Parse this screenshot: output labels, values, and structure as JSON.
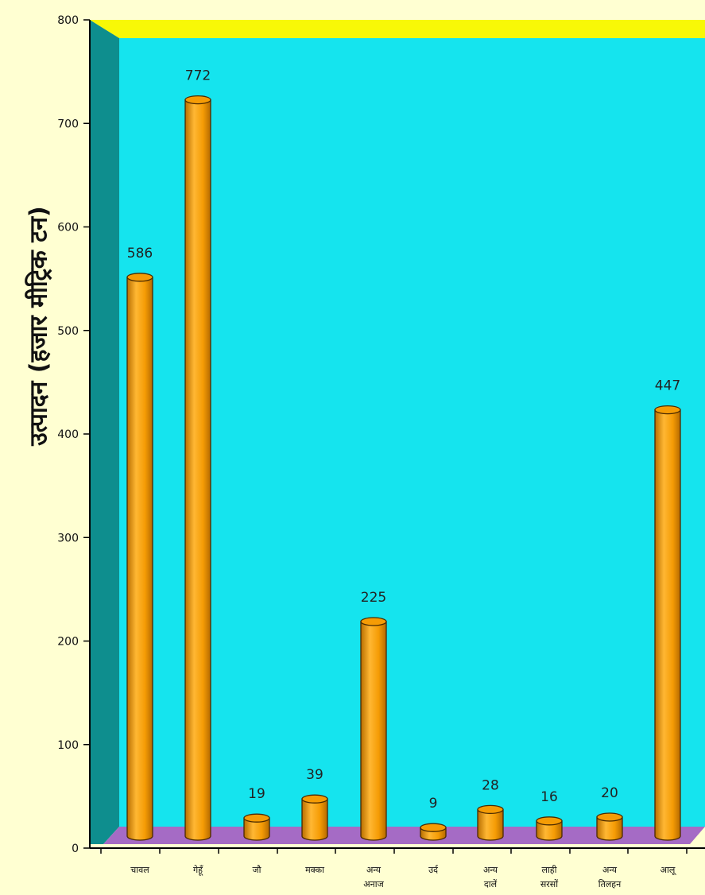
{
  "chart_data": {
    "type": "bar",
    "ylabel": "उत्पादन (हजार मीट्रिक टन)",
    "xlabel": "",
    "ylim": [
      0,
      800
    ],
    "yticks": [
      0,
      100,
      200,
      300,
      400,
      500,
      600,
      700,
      800
    ],
    "yticks_labels": [
      "0",
      "100",
      "200",
      "300",
      "400",
      "500",
      "600",
      "700",
      "800"
    ],
    "grid": false,
    "categories": [
      [
        "चावल"
      ],
      [
        "गेहूँ"
      ],
      [
        "जौ"
      ],
      [
        "मक्का"
      ],
      [
        "अन्य",
        "अनाज"
      ],
      [
        "उर्द"
      ],
      [
        "अन्य",
        "दालें"
      ],
      [
        "लाही",
        "सरसों"
      ],
      [
        "अन्य",
        "तिलहन"
      ],
      [
        "आलू"
      ]
    ],
    "values": [
      586,
      772,
      19,
      39,
      225,
      9,
      28,
      16,
      20,
      447
    ],
    "value_labels": [
      "586",
      "772",
      "19",
      "39",
      "225",
      "9",
      "28",
      "16",
      "20",
      "447"
    ],
    "colors": {
      "page_background": "#FFFFD2",
      "back_wall": "#15E4EE",
      "side_wall": "#0E8E8E",
      "top_band": "#F8F806",
      "floor": "#A56BC5",
      "bar_fill": "#F8A109",
      "bar_outline": "#4A2A00"
    }
  }
}
